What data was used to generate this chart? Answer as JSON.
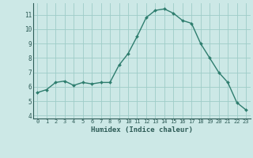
{
  "x": [
    0,
    1,
    2,
    3,
    4,
    5,
    6,
    7,
    8,
    9,
    10,
    11,
    12,
    13,
    14,
    15,
    16,
    17,
    18,
    19,
    20,
    21,
    22,
    23
  ],
  "y": [
    5.6,
    5.8,
    6.3,
    6.4,
    6.1,
    6.3,
    6.2,
    6.3,
    6.3,
    7.5,
    8.3,
    9.5,
    10.8,
    11.3,
    11.4,
    11.1,
    10.6,
    10.4,
    9.0,
    8.0,
    7.0,
    6.3,
    4.9,
    4.4
  ],
  "xlabel": "Humidex (Indice chaleur)",
  "xlim": [
    -0.5,
    23.5
  ],
  "ylim": [
    3.8,
    11.8
  ],
  "yticks": [
    4,
    5,
    6,
    7,
    8,
    9,
    10,
    11
  ],
  "ytick_labels": [
    "4",
    "5",
    "6",
    "7",
    "8",
    "9",
    "10",
    "11"
  ],
  "xticks": [
    0,
    1,
    2,
    3,
    4,
    5,
    6,
    7,
    8,
    9,
    10,
    11,
    12,
    13,
    14,
    15,
    16,
    17,
    18,
    19,
    20,
    21,
    22,
    23
  ],
  "line_color": "#2e7d6e",
  "bg_color": "#cce8e6",
  "grid_color": "#9eccc8",
  "tick_label_color": "#2e5c57",
  "xlabel_color": "#2e5c57",
  "markersize": 2.0,
  "linewidth": 1.0
}
